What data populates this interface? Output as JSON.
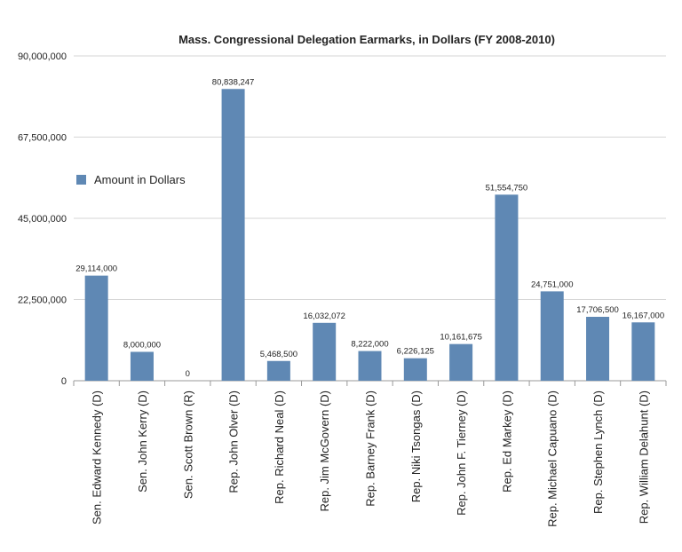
{
  "chart_data": {
    "type": "bar",
    "title": "Mass. Congressional Delegation Earmarks, in Dollars (FY 2008-2010)",
    "xlabel": "",
    "ylabel": "",
    "ylim": [
      0,
      90000000
    ],
    "yticks": [
      "0",
      "22,500,000",
      "45,000,000",
      "67,500,000",
      "90,000,000"
    ],
    "ytick_values": [
      0,
      22500000,
      45000000,
      67500000,
      90000000
    ],
    "grid": true,
    "legend_position": "left",
    "categories": [
      "Sen. Edward Kennedy (D)",
      "Sen. John Kerry (D)",
      "Sen. Scott Brown (R)",
      "Rep. John Olver (D)",
      "Rep. Richard Neal (D)",
      "Rep. Jim McGovern (D)",
      "Rep.  Barney Frank (D)",
      "Rep. Niki Tsongas (D)",
      "Rep. John F. Tierney (D)",
      "Rep. Ed Markey (D)",
      "Rep. Michael Capuano (D)",
      "Rep. Stephen Lynch (D)",
      "Rep. William Delahunt (D)"
    ],
    "series": [
      {
        "name": "Amount in Dollars",
        "color": "#5f88b4",
        "values": [
          29114000,
          8000000,
          0,
          80838247,
          5468500,
          16032072,
          8222000,
          6226125,
          10161675,
          51554750,
          24751000,
          17706500,
          16167000
        ],
        "labels": [
          "29,114,000",
          "8,000,000",
          "0",
          "80,838,247",
          "5,468,500",
          "16,032,072",
          "8,222,000",
          "6,226,125",
          "10,161,675",
          "51,554,750",
          "24,751,000",
          "17,706,500",
          "16,167,000"
        ]
      }
    ]
  }
}
